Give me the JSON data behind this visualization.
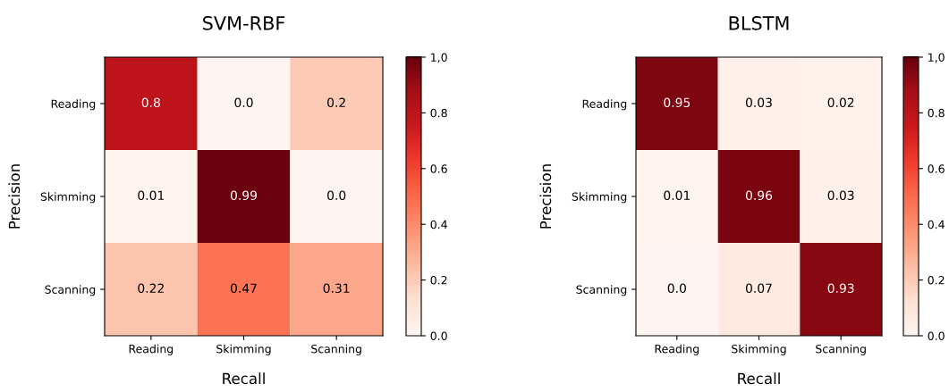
{
  "chart_data": [
    {
      "type": "heatmap",
      "title": "SVM-RBF",
      "xlabel": "Recall",
      "ylabel": "Precision",
      "categories": [
        "Reading",
        "Skimming",
        "Scanning"
      ],
      "y_categories": [
        "Reading",
        "Skimming",
        "Scanning"
      ],
      "cells": [
        [
          0.8,
          0.0,
          0.2
        ],
        [
          0.01,
          0.99,
          0.0
        ],
        [
          0.22,
          0.47,
          0.31
        ]
      ],
      "cell_labels": [
        [
          "0.8",
          "0.0",
          "0.2"
        ],
        [
          "0.01",
          "0.99",
          "0.0"
        ],
        [
          "0.22",
          "0.47",
          "0.31"
        ]
      ],
      "clim": [
        0.0,
        1.0
      ],
      "cticks": [
        {
          "value": 0,
          "label": "0.0"
        },
        {
          "value": 0.2,
          "label": "0.2"
        },
        {
          "value": 0.4,
          "label": "0.4"
        },
        {
          "value": 0.6,
          "label": "0.6"
        },
        {
          "value": 0.8,
          "label": "0.8"
        },
        {
          "value": 1,
          "label": "1,0"
        }
      ]
    },
    {
      "type": "heatmap",
      "title": "BLSTM",
      "xlabel": "Recall",
      "ylabel": "Precision",
      "categories": [
        "Reading",
        "Skimming",
        "Scanning"
      ],
      "y_categories": [
        "Reading",
        "Skimming",
        "Scanning"
      ],
      "cells": [
        [
          0.95,
          0.03,
          0.02
        ],
        [
          0.01,
          0.96,
          0.03
        ],
        [
          0.0,
          0.07,
          0.93
        ]
      ],
      "cell_labels": [
        [
          "0.95",
          "0.03",
          "0.02"
        ],
        [
          "0.01",
          "0.96",
          "0.03"
        ],
        [
          "0.0",
          "0.07",
          "0.93"
        ]
      ],
      "clim": [
        0.0,
        1.0
      ],
      "cticks": [
        {
          "value": 0,
          "label": "0.0"
        },
        {
          "value": 0.2,
          "label": "0.2"
        },
        {
          "value": 0.4,
          "label": "0.4"
        },
        {
          "value": 0.6,
          "label": "0.6"
        },
        {
          "value": 0.8,
          "label": "0.8"
        },
        {
          "value": 1,
          "label": "1,0"
        }
      ]
    }
  ]
}
